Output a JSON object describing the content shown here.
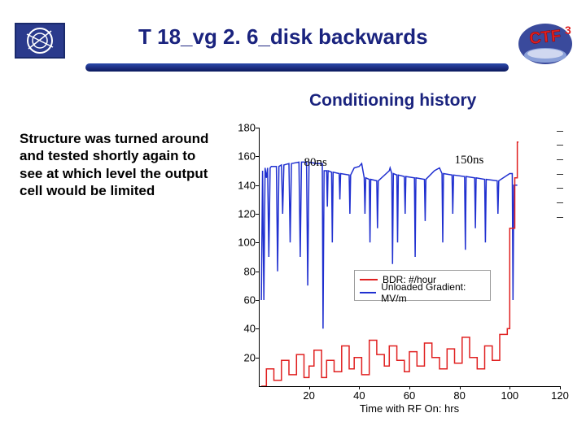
{
  "title": "T 18_vg 2. 6_disk backwards",
  "subtitle": "Conditioning history",
  "body_text": "Structure was turned around and tested shortly again to see at which level the output cell would be limited",
  "xlabel": "Time with RF On: hrs",
  "annotations": {
    "a1": "80ns",
    "a2": "150ns"
  },
  "legend": {
    "s1_label": "BDR: #/hour",
    "s2_label": "Unloaded Gradient: MV/m"
  },
  "colors": {
    "title": "#1a237e",
    "header_bar": "#2a4aac",
    "bdr": "#e02020",
    "gradient": "#2030d0",
    "grid": "#bbbbbb",
    "bg": "#ffffff"
  },
  "chart": {
    "type": "line",
    "xlim": [
      0,
      120
    ],
    "ylim": [
      0,
      180
    ],
    "xtick_step": 20,
    "ytick_step": 20,
    "yticks": [
      20,
      40,
      60,
      80,
      100,
      120,
      140,
      160,
      180
    ],
    "xticks": [
      20,
      40,
      60,
      80,
      100,
      120
    ],
    "grid": true,
    "line_width_gradient": 1.5,
    "line_width_bdr": 1.5,
    "background_color": "#ffffff",
    "grid_color": "#bbbbbb",
    "gradient_series": [
      [
        1,
        60
      ],
      [
        1.5,
        150
      ],
      [
        2,
        60
      ],
      [
        2.5,
        152
      ],
      [
        3,
        145
      ],
      [
        3.5,
        152
      ],
      [
        4,
        90
      ],
      [
        4.5,
        152
      ],
      [
        5,
        153
      ],
      [
        7,
        153
      ],
      [
        7.5,
        80
      ],
      [
        8,
        153
      ],
      [
        9,
        154
      ],
      [
        9.5,
        120
      ],
      [
        10,
        154
      ],
      [
        12,
        155
      ],
      [
        12.5,
        100
      ],
      [
        13,
        155
      ],
      [
        16,
        156
      ],
      [
        16.5,
        90
      ],
      [
        17,
        156
      ],
      [
        19,
        156
      ],
      [
        19.5,
        70
      ],
      [
        20,
        156
      ],
      [
        23,
        155
      ],
      [
        25,
        155
      ],
      [
        25.3,
        155
      ],
      [
        25.6,
        40
      ],
      [
        26,
        150
      ],
      [
        27,
        150
      ],
      [
        27.3,
        125
      ],
      [
        27.6,
        150
      ],
      [
        29,
        149
      ],
      [
        29.3,
        100
      ],
      [
        29.6,
        149
      ],
      [
        32,
        148
      ],
      [
        32.3,
        130
      ],
      [
        32.6,
        148
      ],
      [
        36,
        147
      ],
      [
        36.3,
        120
      ],
      [
        36.6,
        147
      ],
      [
        38,
        152
      ],
      [
        40,
        153
      ],
      [
        41,
        155
      ],
      [
        42,
        145
      ],
      [
        42.3,
        120
      ],
      [
        42.6,
        145
      ],
      [
        44,
        144
      ],
      [
        44.3,
        100
      ],
      [
        44.6,
        144
      ],
      [
        47,
        143
      ],
      [
        47.3,
        110
      ],
      [
        47.6,
        143
      ],
      [
        52,
        150
      ],
      [
        52.3,
        152
      ],
      [
        53,
        148
      ],
      [
        53.3,
        85
      ],
      [
        53.6,
        148
      ],
      [
        55,
        147
      ],
      [
        55.3,
        100
      ],
      [
        55.6,
        147
      ],
      [
        58,
        146
      ],
      [
        58.3,
        120
      ],
      [
        58.6,
        146
      ],
      [
        62,
        145
      ],
      [
        62.3,
        90
      ],
      [
        62.6,
        145
      ],
      [
        66,
        144
      ],
      [
        66.3,
        115
      ],
      [
        66.6,
        144
      ],
      [
        70,
        150
      ],
      [
        72,
        152
      ],
      [
        73,
        148
      ],
      [
        73.3,
        100
      ],
      [
        73.6,
        148
      ],
      [
        77,
        147
      ],
      [
        77.3,
        120
      ],
      [
        77.6,
        147
      ],
      [
        82,
        146
      ],
      [
        82.3,
        95
      ],
      [
        82.6,
        146
      ],
      [
        86,
        145
      ],
      [
        86.3,
        110
      ],
      [
        86.6,
        145
      ],
      [
        90,
        144
      ],
      [
        90.3,
        100
      ],
      [
        90.6,
        144
      ],
      [
        95,
        143
      ],
      [
        95.3,
        120
      ],
      [
        95.6,
        143
      ],
      [
        100,
        148
      ],
      [
        101,
        148
      ],
      [
        101.3,
        60
      ],
      [
        101.6,
        140
      ],
      [
        103,
        140
      ]
    ],
    "bdr_series": [
      [
        1,
        0
      ],
      [
        3,
        0
      ],
      [
        3,
        12
      ],
      [
        6,
        12
      ],
      [
        6,
        4
      ],
      [
        9,
        4
      ],
      [
        9,
        18
      ],
      [
        12,
        18
      ],
      [
        12,
        8
      ],
      [
        15,
        8
      ],
      [
        15,
        22
      ],
      [
        18,
        22
      ],
      [
        18,
        6
      ],
      [
        20,
        6
      ],
      [
        20,
        14
      ],
      [
        22,
        14
      ],
      [
        22,
        25
      ],
      [
        25,
        25
      ],
      [
        25,
        6
      ],
      [
        27,
        6
      ],
      [
        27,
        18
      ],
      [
        30,
        18
      ],
      [
        30,
        10
      ],
      [
        33,
        10
      ],
      [
        33,
        28
      ],
      [
        36,
        28
      ],
      [
        36,
        12
      ],
      [
        38,
        12
      ],
      [
        38,
        20
      ],
      [
        41,
        20
      ],
      [
        41,
        8
      ],
      [
        44,
        8
      ],
      [
        44,
        32
      ],
      [
        47,
        32
      ],
      [
        47,
        22
      ],
      [
        50,
        22
      ],
      [
        50,
        14
      ],
      [
        52,
        14
      ],
      [
        52,
        28
      ],
      [
        55,
        28
      ],
      [
        55,
        18
      ],
      [
        58,
        18
      ],
      [
        58,
        10
      ],
      [
        60,
        10
      ],
      [
        60,
        24
      ],
      [
        63,
        24
      ],
      [
        63,
        14
      ],
      [
        66,
        14
      ],
      [
        66,
        30
      ],
      [
        69,
        30
      ],
      [
        69,
        20
      ],
      [
        72,
        20
      ],
      [
        72,
        12
      ],
      [
        75,
        12
      ],
      [
        75,
        26
      ],
      [
        78,
        26
      ],
      [
        78,
        16
      ],
      [
        81,
        16
      ],
      [
        81,
        34
      ],
      [
        84,
        34
      ],
      [
        84,
        20
      ],
      [
        87,
        20
      ],
      [
        87,
        12
      ],
      [
        90,
        12
      ],
      [
        90,
        28
      ],
      [
        93,
        28
      ],
      [
        93,
        18
      ],
      [
        96,
        18
      ],
      [
        96,
        36
      ],
      [
        99,
        36
      ],
      [
        99,
        40
      ],
      [
        100,
        40
      ],
      [
        100,
        110
      ],
      [
        102,
        110
      ],
      [
        102,
        145
      ],
      [
        103,
        145
      ],
      [
        103,
        170
      ],
      [
        103.5,
        170
      ]
    ],
    "annot_positions": {
      "a1": [
        18,
        160
      ],
      "a2": [
        78,
        162
      ]
    }
  }
}
